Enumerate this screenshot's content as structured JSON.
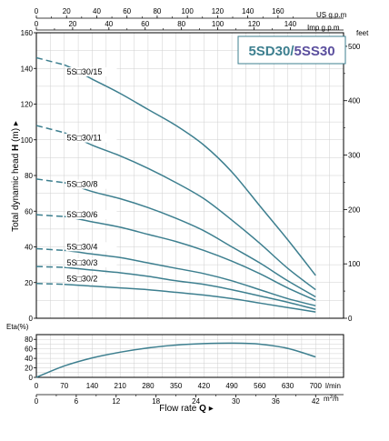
{
  "chart_data": {
    "type": "line",
    "title_badge": {
      "part1": "5SD30/",
      "part2": "5SS30",
      "color1": "#3d7f8f",
      "color2": "#5b4f9e"
    },
    "units": {
      "us_gpm": "US g.p.m",
      "imp_gpm": "Imp g.p.m",
      "feet": "feet",
      "lmin": "l/min",
      "m3h": "m",
      "m3h_exp": "3",
      "m3h_tail": "/h"
    },
    "ylabel": {
      "prefix": "Total dynamic head ",
      "bold": "H",
      "suffix": " (m) ▸"
    },
    "xlabel": {
      "prefix": "Flow  rate  ",
      "bold": "Q",
      "suffix": " ▸"
    },
    "eta_label": "Eta(%)",
    "ticks": {
      "us_gpm": [
        "0",
        "20",
        "40",
        "60",
        "80",
        "100",
        "120",
        "140",
        "160"
      ],
      "imp_gpm": [
        "0",
        "20",
        "40",
        "60",
        "80",
        "100",
        "120",
        "140"
      ],
      "head_m": [
        "0",
        "20",
        "40",
        "60",
        "80",
        "100",
        "120",
        "140",
        "160"
      ],
      "head_ft": [
        "0",
        "100",
        "200",
        "300",
        "400",
        "500"
      ],
      "eta": [
        "0",
        "20",
        "40",
        "60",
        "80"
      ],
      "lmin": [
        "0",
        "70",
        "140",
        "210",
        "280",
        "350",
        "420",
        "490",
        "560",
        "630",
        "700"
      ],
      "m3h": [
        "0",
        "6",
        "12",
        "18",
        "24",
        "30",
        "36",
        "42"
      ]
    },
    "xlim_lmin": [
      0,
      770
    ],
    "ylim_head_m": [
      0,
      160
    ],
    "ylim_eta": [
      0,
      90
    ],
    "grid": true,
    "line_color": "#3d7f8f",
    "series": [
      {
        "name": "5S□30/15",
        "x": [
          0,
          70,
          140,
          210,
          280,
          350,
          420,
          490,
          560,
          630,
          700
        ],
        "y": [
          146,
          142,
          134,
          126,
          117,
          108,
          97,
          82,
          63,
          44,
          24
        ]
      },
      {
        "name": "5S□30/11",
        "x": [
          0,
          70,
          140,
          210,
          280,
          350,
          420,
          490,
          560,
          630,
          700
        ],
        "y": [
          108,
          104,
          97,
          91,
          84,
          76,
          67,
          55,
          42,
          28,
          16
        ]
      },
      {
        "name": "5S□30/8",
        "x": [
          0,
          70,
          140,
          210,
          280,
          350,
          420,
          490,
          560,
          630,
          700
        ],
        "y": [
          78,
          76,
          71,
          67,
          62,
          56,
          49,
          40,
          31,
          21,
          12
        ]
      },
      {
        "name": "5S□30/6",
        "x": [
          0,
          70,
          140,
          210,
          280,
          350,
          420,
          490,
          560,
          630,
          700
        ],
        "y": [
          58,
          57,
          54,
          51,
          47,
          43,
          38,
          32,
          25,
          17,
          10
        ]
      },
      {
        "name": "5S□30/4",
        "x": [
          0,
          70,
          140,
          210,
          280,
          350,
          420,
          490,
          560,
          630,
          700
        ],
        "y": [
          39,
          38,
          36,
          34,
          31,
          28,
          25,
          21,
          16,
          11,
          7
        ]
      },
      {
        "name": "5S□30/3",
        "x": [
          0,
          70,
          140,
          210,
          280,
          350,
          420,
          490,
          560,
          630,
          700
        ],
        "y": [
          29,
          28.5,
          27,
          25.5,
          23.5,
          21,
          19,
          16,
          12.5,
          9,
          5
        ]
      },
      {
        "name": "5S□30/2",
        "x": [
          0,
          70,
          140,
          210,
          280,
          350,
          420,
          490,
          560,
          630,
          700
        ],
        "y": [
          19.5,
          19,
          18,
          17,
          16,
          14.5,
          13,
          11,
          8.5,
          6,
          3.5
        ]
      }
    ],
    "efficiency": {
      "x": [
        0,
        70,
        140,
        210,
        280,
        350,
        420,
        490,
        560,
        630,
        700
      ],
      "y": [
        0,
        24,
        41,
        53,
        62,
        68,
        71,
        72,
        70,
        61,
        43
      ]
    }
  }
}
